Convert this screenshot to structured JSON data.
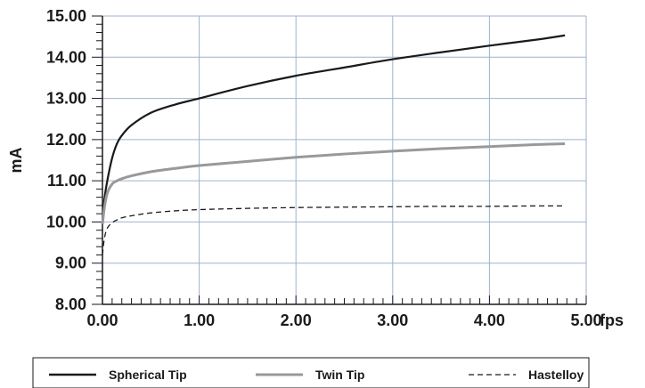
{
  "chart_data": {
    "type": "line",
    "title": "",
    "xlabel": "fps",
    "ylabel": "mA",
    "xlim": [
      0,
      5
    ],
    "ylim": [
      8,
      15
    ],
    "x_ticks": [
      0,
      1,
      2,
      3,
      4,
      5
    ],
    "x_tick_labels": [
      "0.00",
      "1.00",
      "2.00",
      "3.00",
      "4.00",
      "5.00"
    ],
    "y_ticks": [
      8,
      9,
      10,
      11,
      12,
      13,
      14,
      15
    ],
    "y_tick_labels": [
      "8.00",
      "9.00",
      "10.00",
      "11.00",
      "12.00",
      "13.00",
      "14.00",
      "15.00"
    ],
    "x_minor_step": 0.1,
    "y_minor_step": 0.2,
    "grid": true,
    "legend_position": "bottom",
    "series": [
      {
        "name": "Spherical Tip",
        "style": "solid",
        "color": "#1a1a1a",
        "x": [
          0,
          0.02,
          0.05,
          0.1,
          0.15,
          0.2,
          0.3,
          0.5,
          0.75,
          1.0,
          1.5,
          2.0,
          2.5,
          3.0,
          3.5,
          4.0,
          4.5,
          4.78
        ],
        "y": [
          10.05,
          10.55,
          11.0,
          11.55,
          11.9,
          12.1,
          12.35,
          12.65,
          12.85,
          13.0,
          13.3,
          13.55,
          13.75,
          13.95,
          14.12,
          14.28,
          14.43,
          14.53
        ]
      },
      {
        "name": "Twin Tip",
        "style": "solid",
        "color": "#999999",
        "x": [
          0,
          0.02,
          0.05,
          0.1,
          0.15,
          0.2,
          0.3,
          0.5,
          0.75,
          1.0,
          1.5,
          2.0,
          2.5,
          3.0,
          3.5,
          4.0,
          4.5,
          4.78
        ],
        "y": [
          9.95,
          10.35,
          10.7,
          10.92,
          11.0,
          11.05,
          11.12,
          11.22,
          11.3,
          11.37,
          11.47,
          11.57,
          11.65,
          11.72,
          11.78,
          11.83,
          11.88,
          11.9
        ],
        "stroke_width": 3
      },
      {
        "name": "Hastelloy",
        "style": "dashed",
        "color": "#1a1a1a",
        "x": [
          0,
          0.02,
          0.05,
          0.1,
          0.15,
          0.2,
          0.3,
          0.5,
          0.75,
          1.0,
          1.5,
          2.0,
          2.5,
          3.0,
          3.5,
          4.0,
          4.5,
          4.78
        ],
        "y": [
          9.2,
          9.6,
          9.85,
          9.98,
          10.05,
          10.1,
          10.15,
          10.22,
          10.27,
          10.3,
          10.33,
          10.35,
          10.36,
          10.37,
          10.38,
          10.38,
          10.39,
          10.39
        ]
      }
    ]
  }
}
